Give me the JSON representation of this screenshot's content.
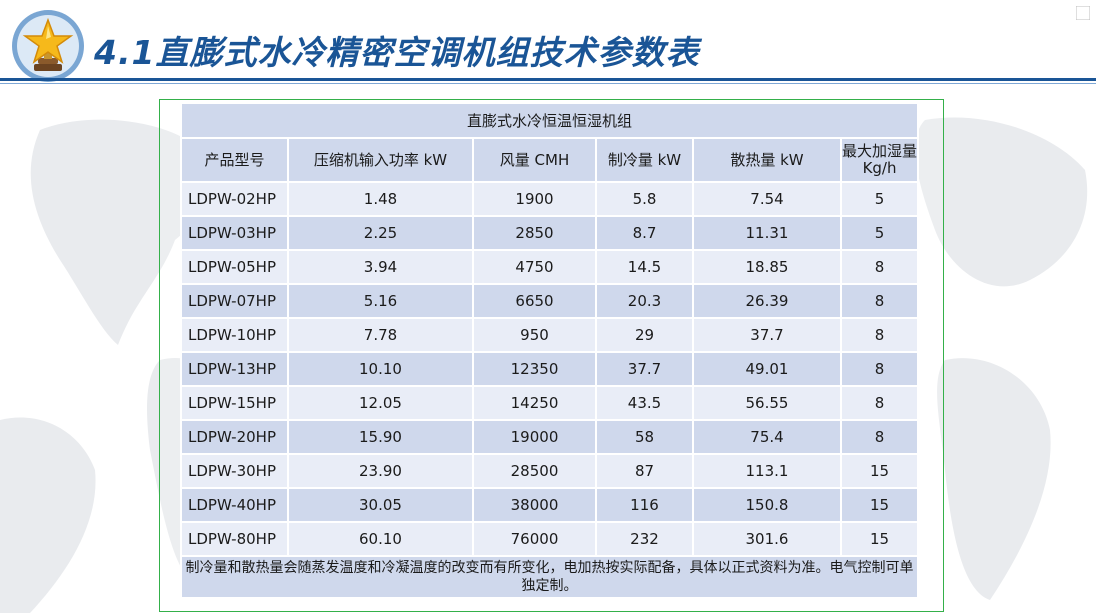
{
  "page": {
    "title": "4.1直膨式水冷精密空调机组技术参数表"
  },
  "table": {
    "caption": "直膨式水冷恒温恒湿机组",
    "headers": [
      "产品型号",
      "压缩机输入功率 kW",
      "风量 CMH",
      "制冷量 kW",
      "散热量 kW",
      "最大加湿量 Kg/h"
    ],
    "rows": [
      [
        "LDPW-02HP",
        "1.48",
        "1900",
        "5.8",
        "7.54",
        "5"
      ],
      [
        "LDPW-03HP",
        "2.25",
        "2850",
        "8.7",
        "11.31",
        "5"
      ],
      [
        "LDPW-05HP",
        "3.94",
        "4750",
        "14.5",
        "18.85",
        "8"
      ],
      [
        "LDPW-07HP",
        "5.16",
        "6650",
        "20.3",
        "26.39",
        "8"
      ],
      [
        "LDPW-10HP",
        "7.78",
        "950",
        "29",
        "37.7",
        "8"
      ],
      [
        "LDPW-13HP",
        "10.10",
        "12350",
        "37.7",
        "49.01",
        "8"
      ],
      [
        "LDPW-15HP",
        "12.05",
        "14250",
        "43.5",
        "56.55",
        "8"
      ],
      [
        "LDPW-20HP",
        "15.90",
        "19000",
        "58",
        "75.4",
        "8"
      ],
      [
        "LDPW-30HP",
        "23.90",
        "28500",
        "87",
        "113.1",
        "15"
      ],
      [
        "LDPW-40HP",
        "30.05",
        "38000",
        "116",
        "150.8",
        "15"
      ],
      [
        "LDPW-80HP",
        "60.10",
        "76000",
        "232",
        "301.6",
        "15"
      ]
    ],
    "note": "制冷量和散热量会随蒸发温度和冷凝温度的改变而有所变化，电加热按实际配备，具体以正式资料为准。电气控制可单独定制。"
  },
  "colors": {
    "title": "#1a5596",
    "header_fill": "#cfd8ec",
    "row_light": "#e9edf7",
    "row_dark": "#cfd8ec",
    "frame": "#34b04a"
  },
  "icons": [
    "star-trophy-icon",
    "world-map-background"
  ]
}
